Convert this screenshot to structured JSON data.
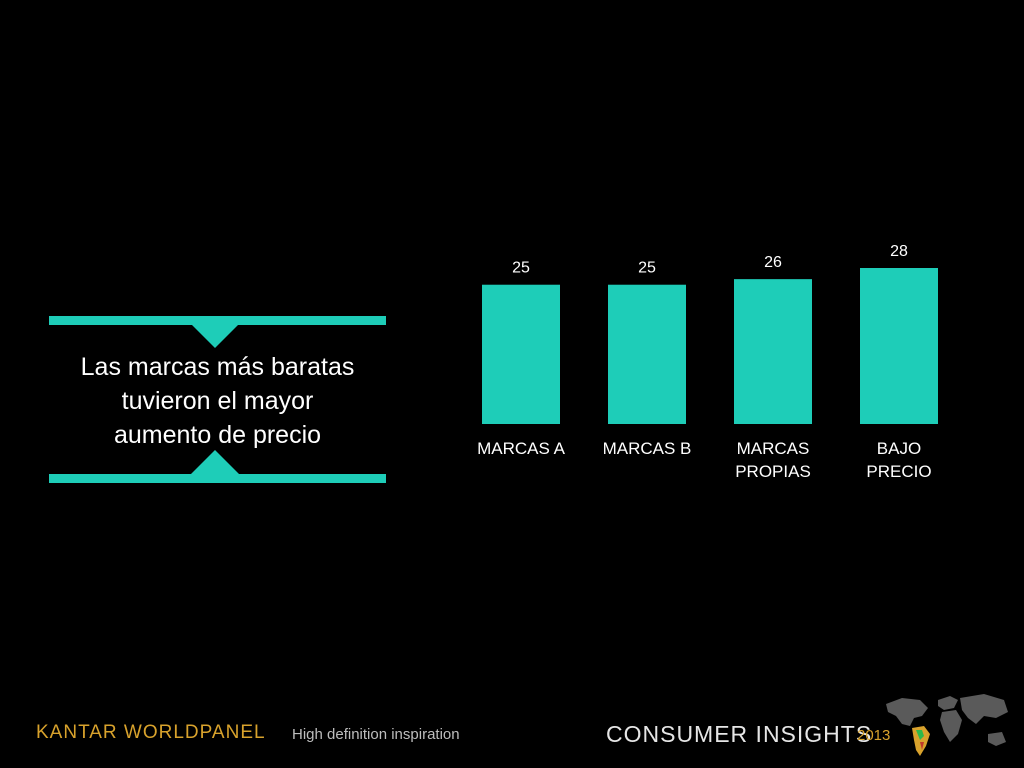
{
  "callout": {
    "headline_line1": "Las marcas más baratas",
    "headline_line2": "tuvieron el mayor",
    "headline_line3": "aumento de precio"
  },
  "colors": {
    "accent": "#1ecdb8",
    "brand": "#d8a22c",
    "background": "#000000"
  },
  "chart_data": {
    "type": "bar",
    "title": "",
    "xlabel": "",
    "ylabel": "",
    "ylim": [
      0,
      28
    ],
    "grid": false,
    "categories": [
      [
        "MARCAS A"
      ],
      [
        "MARCAS B"
      ],
      [
        "MARCAS",
        "PROPIAS"
      ],
      [
        "BAJO",
        "PRECIO"
      ]
    ],
    "values": [
      25,
      25,
      26,
      28
    ],
    "value_labels": [
      "25",
      "25",
      "26",
      "28"
    ]
  },
  "footer": {
    "brand": "KANTAR WORLDPANEL",
    "tagline": "High definition inspiration",
    "right_title": "CONSUMER INSIGHTS",
    "year": "2013",
    "map_icon": "world-map-icon"
  }
}
